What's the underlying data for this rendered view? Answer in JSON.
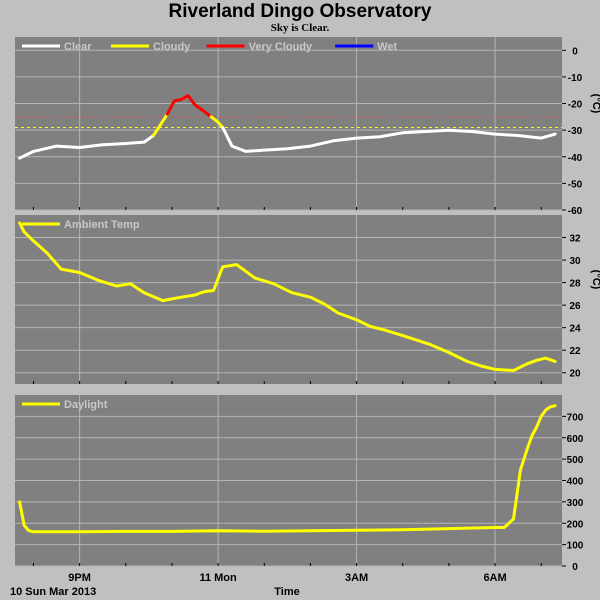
{
  "title": "Riverland Dingo Observatory",
  "subtitle": "Sky is Clear.",
  "colors": {
    "background": "#c0c0c0",
    "plot_bg": "#808080",
    "grid": "#b4b4b4",
    "clear": "#ffffff",
    "cloudy": "#ffff00",
    "very_cloudy": "#ff0000",
    "wet": "#0000ff",
    "temp": "#ffff00",
    "daylight": "#ffff00",
    "limit_very_cloudy": "#ff4040",
    "limit_cloudy": "#ffff00"
  },
  "chart_data": [
    {
      "type": "line",
      "legend": [
        "Clear",
        "Cloudy",
        "Very Cloudy",
        "Wet"
      ],
      "ylabel": "(°C)",
      "ylim": [
        -60,
        5
      ],
      "yticks": [
        0,
        -10,
        -20,
        -30,
        -40,
        -50,
        -60
      ],
      "ytick_labels": [
        "0",
        "-10",
        "-20",
        "-30",
        "-40",
        "-50",
        "-60"
      ],
      "thresholds": [
        {
          "name": "very cloudy limit",
          "value": -25
        },
        {
          "name": "cloudy limit",
          "value": -29
        }
      ],
      "series": [
        {
          "name": "Clear",
          "color": "#ffffff",
          "x": [
            19.7,
            20.0,
            20.5,
            21.0,
            21.5,
            22.0,
            22.4,
            22.6
          ],
          "y": [
            -40.5,
            -38,
            -36,
            -36.5,
            -35.5,
            -35,
            -34.5,
            -32
          ]
        },
        {
          "name": "Cloudy",
          "color": "#ffff00",
          "x": [
            22.6,
            22.75,
            22.9
          ],
          "y": [
            -32,
            -28,
            -24
          ]
        },
        {
          "name": "Very Cloudy",
          "color": "#ff0000",
          "x": [
            22.9,
            23.05,
            23.2,
            23.35,
            23.5,
            23.7,
            23.85
          ],
          "y": [
            -24,
            -19,
            -18.5,
            -17,
            -20.5,
            -23,
            -25
          ]
        },
        {
          "name": "Cloudy",
          "color": "#ffff00",
          "x": [
            23.85,
            24.0,
            24.1
          ],
          "y": [
            -25,
            -27,
            -29
          ]
        },
        {
          "name": "Clear",
          "color": "#ffffff",
          "x": [
            24.1,
            24.3,
            24.6,
            25.0,
            25.5,
            26.0,
            26.5,
            27.0,
            27.5,
            28.0,
            28.5,
            29.0,
            29.5,
            30.0,
            30.5,
            31.0,
            31.3
          ],
          "y": [
            -29,
            -36,
            -38,
            -37.5,
            -37,
            -36,
            -34,
            -33,
            -32.5,
            -31,
            -30.5,
            -30,
            -30.5,
            -31.5,
            -32,
            -33,
            -31.5
          ]
        }
      ]
    },
    {
      "type": "line",
      "legend": [
        "Ambient Temp"
      ],
      "ylabel": "(°C)",
      "ylim": [
        19,
        34
      ],
      "yticks": [
        20,
        22,
        24,
        26,
        28,
        30,
        32
      ],
      "ytick_labels": [
        "20",
        "22",
        "24",
        "26",
        "28",
        "30",
        "32"
      ],
      "series": [
        {
          "name": "Ambient Temp",
          "color": "#ffff00",
          "x": [
            19.7,
            19.8,
            20.0,
            20.3,
            20.6,
            21.0,
            21.4,
            21.8,
            22.1,
            22.4,
            22.8,
            23.2,
            23.5,
            23.7,
            23.9,
            24.1,
            24.4,
            24.8,
            25.2,
            25.6,
            26.0,
            26.3,
            26.6,
            27.0,
            27.3,
            27.6,
            28.0,
            28.3,
            28.6,
            29.0,
            29.4,
            29.7,
            30.0,
            30.4,
            30.7,
            30.9,
            31.1,
            31.3
          ],
          "y": [
            33.3,
            32.5,
            31.7,
            30.6,
            29.2,
            28.9,
            28.2,
            27.7,
            27.9,
            27.1,
            26.4,
            26.7,
            26.9,
            27.2,
            27.3,
            29.4,
            29.6,
            28.4,
            27.9,
            27.1,
            26.7,
            26.1,
            25.3,
            24.7,
            24.1,
            23.8,
            23.3,
            22.9,
            22.5,
            21.8,
            21.0,
            20.6,
            20.3,
            20.2,
            20.8,
            21.1,
            21.3,
            21.0
          ]
        }
      ]
    },
    {
      "type": "line",
      "legend": [
        "Daylight"
      ],
      "ylim": [
        0,
        800
      ],
      "yticks": [
        0,
        100,
        200,
        300,
        400,
        500,
        600,
        700
      ],
      "ytick_labels": [
        "0",
        "100",
        "200",
        "300",
        "400",
        "500",
        "600",
        "700"
      ],
      "xlabel": "Time",
      "xticks": [
        21,
        24,
        27,
        30
      ],
      "xtick_labels": [
        "9PM",
        "11 Mon",
        "3AM",
        "6AM"
      ],
      "date_label": "10 Sun Mar 2013",
      "series": [
        {
          "name": "Daylight",
          "color": "#ffff00",
          "x": [
            19.7,
            19.8,
            19.9,
            20.0,
            20.5,
            21.0,
            22.0,
            23.0,
            24.0,
            25.0,
            26.0,
            27.0,
            28.0,
            29.0,
            30.0,
            30.2,
            30.4,
            30.55,
            30.7,
            30.8,
            30.9,
            31.0,
            31.1,
            31.2,
            31.3
          ],
          "y": [
            300,
            190,
            165,
            160,
            160,
            160,
            162,
            162,
            165,
            163,
            165,
            167,
            170,
            175,
            180,
            180,
            220,
            450,
            550,
            610,
            650,
            700,
            730,
            745,
            750
          ]
        }
      ]
    }
  ]
}
